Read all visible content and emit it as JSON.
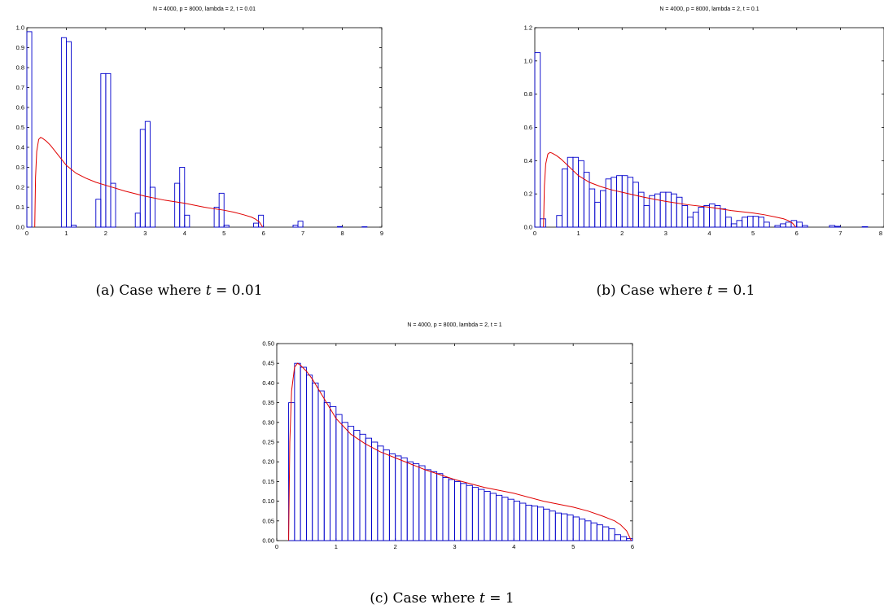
{
  "chart_data": [
    {
      "type": "bar",
      "title": "N = 4000, p = 8000, lambda = 2, t = 0.01",
      "caption": {
        "prefix": "(a)  Case where ",
        "var": "t",
        "rest": " = 0.01"
      },
      "xlim": [
        0,
        9
      ],
      "ylim": [
        0,
        1.0
      ],
      "xticks": [
        0,
        1,
        2,
        3,
        4,
        5,
        6,
        7,
        8,
        9
      ],
      "yticks": [
        0,
        0.1,
        0.2,
        0.3,
        0.4,
        0.5,
        0.6,
        0.7,
        0.8,
        0.9,
        1.0
      ],
      "ytick_labels": [
        "0.0",
        "0.1",
        "0.2",
        "0.3",
        "0.4",
        "0.5",
        "0.6",
        "0.7",
        "0.8",
        "0.9",
        "1.0"
      ],
      "bin_width": 0.125,
      "bars": [
        [
          0.0,
          0.98
        ],
        [
          0.875,
          0.95
        ],
        [
          1.0,
          0.93
        ],
        [
          1.125,
          0.01
        ],
        [
          1.75,
          0.14
        ],
        [
          1.875,
          0.77
        ],
        [
          2.0,
          0.77
        ],
        [
          2.125,
          0.22
        ],
        [
          2.75,
          0.07
        ],
        [
          2.875,
          0.49
        ],
        [
          3.0,
          0.53
        ],
        [
          3.125,
          0.2
        ],
        [
          3.75,
          0.22
        ],
        [
          3.875,
          0.3
        ],
        [
          4.0,
          0.06
        ],
        [
          4.75,
          0.1
        ],
        [
          4.875,
          0.17
        ],
        [
          5.0,
          0.01
        ],
        [
          5.75,
          0.02
        ],
        [
          5.875,
          0.06
        ],
        [
          6.75,
          0.01
        ],
        [
          6.875,
          0.03
        ],
        [
          7.875,
          0.003
        ],
        [
          8.5,
          0.002
        ]
      ],
      "curve": {
        "x": [
          0.2,
          0.22,
          0.25,
          0.3,
          0.35,
          0.4,
          0.5,
          0.6,
          0.8,
          1.0,
          1.25,
          1.5,
          1.75,
          2.0,
          2.5,
          3.0,
          3.5,
          4.0,
          4.5,
          5.0,
          5.25,
          5.5,
          5.7,
          5.8,
          5.9,
          5.98
        ],
        "y": [
          0.0,
          0.25,
          0.38,
          0.44,
          0.45,
          0.445,
          0.43,
          0.41,
          0.36,
          0.31,
          0.27,
          0.245,
          0.225,
          0.21,
          0.18,
          0.155,
          0.135,
          0.12,
          0.1,
          0.085,
          0.075,
          0.062,
          0.05,
          0.04,
          0.025,
          0.0
        ]
      },
      "colors": {
        "bars": "#0000cc",
        "curve": "#e00000"
      }
    },
    {
      "type": "bar",
      "title": "N = 4000, p = 8000, lambda = 2, t = 0.1",
      "caption": {
        "prefix": "(b)  Case where ",
        "var": "t",
        "rest": " = 0.1"
      },
      "xlim": [
        0,
        8
      ],
      "ylim": [
        0,
        1.2
      ],
      "xticks": [
        0,
        1,
        2,
        3,
        4,
        5,
        6,
        7,
        8
      ],
      "yticks": [
        0,
        0.2,
        0.4,
        0.6,
        0.8,
        1.0,
        1.2
      ],
      "ytick_labels": [
        "0.0",
        "0.2",
        "0.4",
        "0.6",
        "0.8",
        "1.0",
        "1.2"
      ],
      "bin_width": 0.125,
      "bars": [
        [
          0.0,
          1.05
        ],
        [
          0.125,
          0.05
        ],
        [
          0.5,
          0.07
        ],
        [
          0.625,
          0.35
        ],
        [
          0.75,
          0.42
        ],
        [
          0.875,
          0.42
        ],
        [
          1.0,
          0.4
        ],
        [
          1.125,
          0.33
        ],
        [
          1.25,
          0.23
        ],
        [
          1.375,
          0.15
        ],
        [
          1.5,
          0.22
        ],
        [
          1.625,
          0.29
        ],
        [
          1.75,
          0.3
        ],
        [
          1.875,
          0.31
        ],
        [
          2.0,
          0.31
        ],
        [
          2.125,
          0.3
        ],
        [
          2.25,
          0.27
        ],
        [
          2.375,
          0.21
        ],
        [
          2.5,
          0.13
        ],
        [
          2.625,
          0.19
        ],
        [
          2.75,
          0.2
        ],
        [
          2.875,
          0.21
        ],
        [
          3.0,
          0.21
        ],
        [
          3.125,
          0.2
        ],
        [
          3.25,
          0.18
        ],
        [
          3.375,
          0.13
        ],
        [
          3.5,
          0.06
        ],
        [
          3.625,
          0.09
        ],
        [
          3.75,
          0.12
        ],
        [
          3.875,
          0.13
        ],
        [
          4.0,
          0.14
        ],
        [
          4.125,
          0.13
        ],
        [
          4.25,
          0.11
        ],
        [
          4.375,
          0.06
        ],
        [
          4.5,
          0.02
        ],
        [
          4.625,
          0.04
        ],
        [
          4.75,
          0.06
        ],
        [
          4.875,
          0.065
        ],
        [
          5.0,
          0.065
        ],
        [
          5.125,
          0.06
        ],
        [
          5.25,
          0.03
        ],
        [
          5.5,
          0.01
        ],
        [
          5.625,
          0.02
        ],
        [
          5.75,
          0.03
        ],
        [
          5.875,
          0.04
        ],
        [
          6.0,
          0.03
        ],
        [
          6.125,
          0.01
        ],
        [
          6.75,
          0.01
        ],
        [
          6.875,
          0.005
        ],
        [
          7.5,
          0.003
        ]
      ],
      "curve": {
        "x": [
          0.2,
          0.22,
          0.25,
          0.3,
          0.35,
          0.4,
          0.5,
          0.6,
          0.8,
          1.0,
          1.25,
          1.5,
          1.75,
          2.0,
          2.5,
          3.0,
          3.5,
          4.0,
          4.5,
          5.0,
          5.25,
          5.5,
          5.7,
          5.8,
          5.9,
          5.98
        ],
        "y": [
          0.0,
          0.25,
          0.38,
          0.44,
          0.45,
          0.445,
          0.43,
          0.41,
          0.36,
          0.31,
          0.27,
          0.245,
          0.225,
          0.21,
          0.18,
          0.155,
          0.135,
          0.12,
          0.1,
          0.085,
          0.075,
          0.062,
          0.05,
          0.04,
          0.025,
          0.0
        ]
      },
      "colors": {
        "bars": "#0000cc",
        "curve": "#e00000"
      }
    },
    {
      "type": "bar",
      "title": "N = 4000, p = 8000, lambda = 2, t = 1",
      "caption": {
        "prefix": "(c)  Case where ",
        "var": "t",
        "rest": " = 1"
      },
      "xlim": [
        0,
        6
      ],
      "ylim": [
        0,
        0.5
      ],
      "xticks": [
        0,
        1,
        2,
        3,
        4,
        5,
        6
      ],
      "yticks": [
        0,
        0.05,
        0.1,
        0.15,
        0.2,
        0.25,
        0.3,
        0.35,
        0.4,
        0.45,
        0.5
      ],
      "ytick_labels": [
        "0.00",
        "0.05",
        "0.10",
        "0.15",
        "0.20",
        "0.25",
        "0.30",
        "0.35",
        "0.40",
        "0.45",
        "0.50"
      ],
      "bin_width": 0.1,
      "bars": [
        [
          0.2,
          0.35
        ],
        [
          0.3,
          0.45
        ],
        [
          0.4,
          0.44
        ],
        [
          0.5,
          0.42
        ],
        [
          0.6,
          0.4
        ],
        [
          0.7,
          0.38
        ],
        [
          0.8,
          0.35
        ],
        [
          0.9,
          0.34
        ],
        [
          1.0,
          0.32
        ],
        [
          1.1,
          0.3
        ],
        [
          1.2,
          0.29
        ],
        [
          1.3,
          0.28
        ],
        [
          1.4,
          0.27
        ],
        [
          1.5,
          0.26
        ],
        [
          1.6,
          0.25
        ],
        [
          1.7,
          0.24
        ],
        [
          1.8,
          0.23
        ],
        [
          1.9,
          0.22
        ],
        [
          2.0,
          0.215
        ],
        [
          2.1,
          0.21
        ],
        [
          2.2,
          0.2
        ],
        [
          2.3,
          0.195
        ],
        [
          2.4,
          0.19
        ],
        [
          2.5,
          0.18
        ],
        [
          2.6,
          0.175
        ],
        [
          2.7,
          0.17
        ],
        [
          2.8,
          0.16
        ],
        [
          2.9,
          0.155
        ],
        [
          3.0,
          0.15
        ],
        [
          3.1,
          0.145
        ],
        [
          3.2,
          0.14
        ],
        [
          3.3,
          0.135
        ],
        [
          3.4,
          0.13
        ],
        [
          3.5,
          0.125
        ],
        [
          3.6,
          0.12
        ],
        [
          3.7,
          0.115
        ],
        [
          3.8,
          0.11
        ],
        [
          3.9,
          0.105
        ],
        [
          4.0,
          0.1
        ],
        [
          4.1,
          0.095
        ],
        [
          4.2,
          0.09
        ],
        [
          4.3,
          0.088
        ],
        [
          4.4,
          0.085
        ],
        [
          4.5,
          0.08
        ],
        [
          4.6,
          0.075
        ],
        [
          4.7,
          0.07
        ],
        [
          4.8,
          0.068
        ],
        [
          4.9,
          0.065
        ],
        [
          5.0,
          0.06
        ],
        [
          5.1,
          0.055
        ],
        [
          5.2,
          0.05
        ],
        [
          5.3,
          0.045
        ],
        [
          5.4,
          0.04
        ],
        [
          5.5,
          0.035
        ],
        [
          5.6,
          0.03
        ],
        [
          5.7,
          0.015
        ],
        [
          5.8,
          0.01
        ],
        [
          5.9,
          0.005
        ]
      ],
      "curve": {
        "x": [
          0.2,
          0.22,
          0.25,
          0.3,
          0.35,
          0.4,
          0.5,
          0.6,
          0.8,
          1.0,
          1.25,
          1.5,
          1.75,
          2.0,
          2.5,
          3.0,
          3.5,
          4.0,
          4.5,
          5.0,
          5.25,
          5.5,
          5.7,
          5.8,
          5.9,
          5.98
        ],
        "y": [
          0.0,
          0.25,
          0.38,
          0.44,
          0.45,
          0.445,
          0.43,
          0.41,
          0.36,
          0.31,
          0.27,
          0.245,
          0.225,
          0.21,
          0.18,
          0.155,
          0.135,
          0.12,
          0.1,
          0.085,
          0.075,
          0.062,
          0.05,
          0.04,
          0.025,
          0.0
        ]
      },
      "colors": {
        "bars": "#0000cc",
        "curve": "#e00000"
      }
    }
  ]
}
